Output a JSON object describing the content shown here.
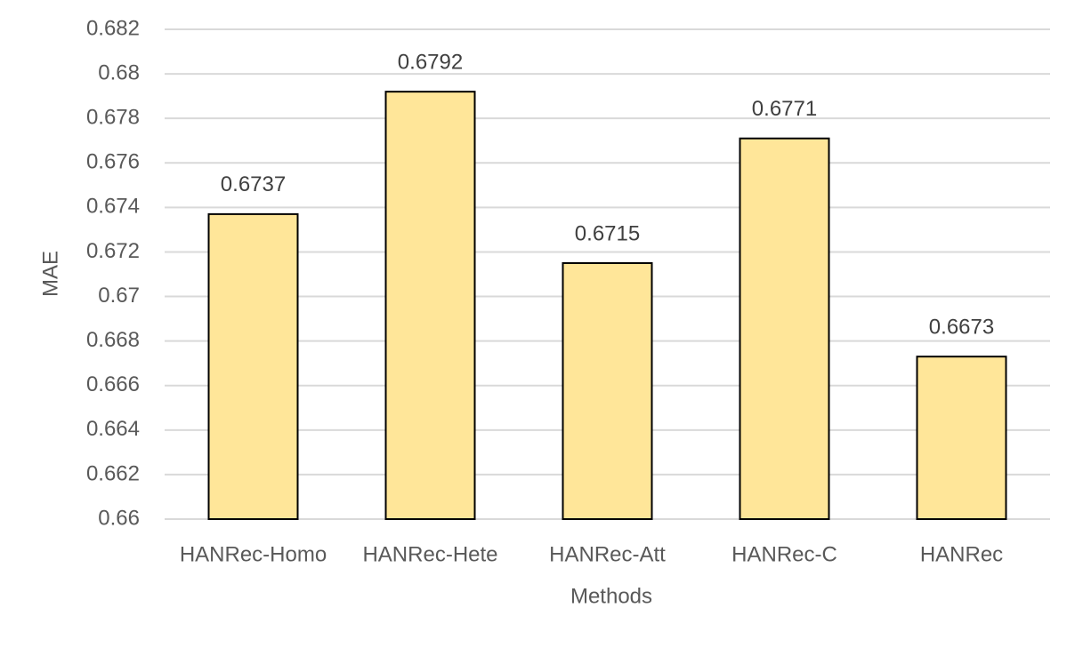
{
  "chart_data": {
    "type": "bar",
    "x_label": "Methods",
    "y_label": "MAE",
    "categories": [
      "HANRec-Homo",
      "HANRec-Hete",
      "HANRec-Att",
      "HANRec-C",
      "HANRec"
    ],
    "values": [
      0.6737,
      0.6792,
      0.6715,
      0.6771,
      0.6673
    ],
    "color": "#ffe699",
    "ylim": [
      0.66,
      0.682
    ],
    "yticks": [
      0.66,
      0.662,
      0.664,
      0.666,
      0.668,
      0.67,
      0.672,
      0.674,
      0.676,
      0.678,
      0.68,
      0.682
    ],
    "grid": true
  }
}
